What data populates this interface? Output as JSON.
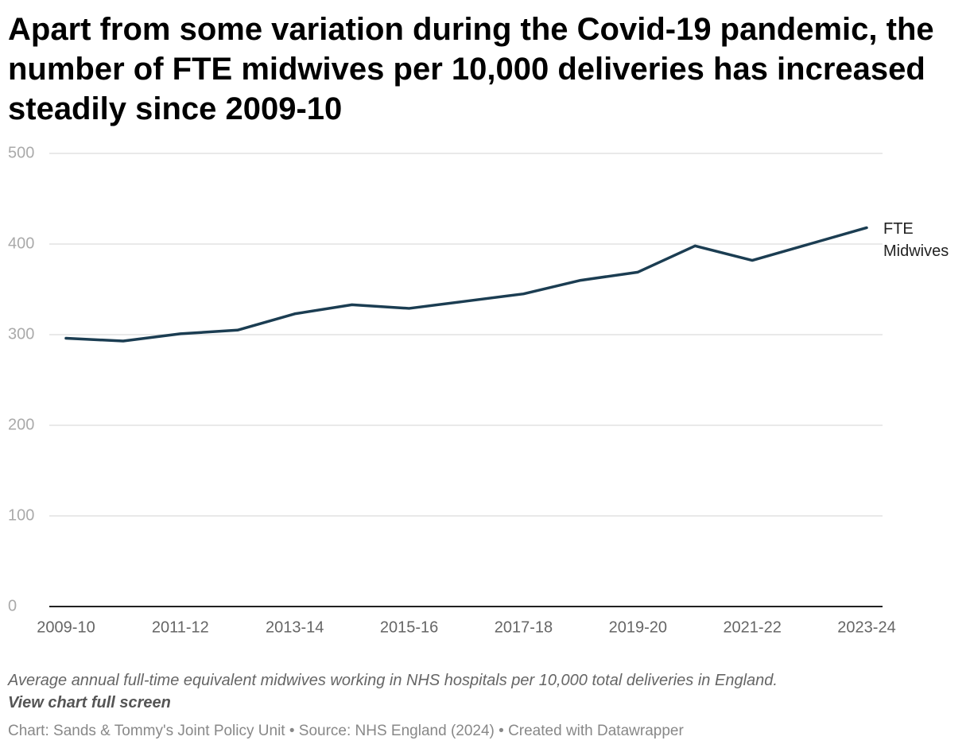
{
  "chart_data": {
    "type": "line",
    "title": "Apart from some variation during the Covid-19 pandemic, the number of FTE midwives per 10,000 deliveries has increased steadily since 2009-10",
    "categories": [
      "2009-10",
      null,
      "2011-12",
      null,
      "2013-14",
      null,
      "2015-16",
      null,
      "2017-18",
      null,
      "2019-20",
      null,
      "2021-22",
      null,
      "2023-24"
    ],
    "series": [
      {
        "name": "FTE Midwives",
        "color": "#1b3d52",
        "values": [
          296,
          293,
          301,
          305,
          323,
          333,
          329,
          337,
          345,
          360,
          369,
          398,
          382,
          400,
          418
        ]
      }
    ],
    "ylim": [
      0,
      500
    ],
    "yticks": [
      0,
      100,
      200,
      300,
      400,
      500
    ],
    "grid": true,
    "description": "Average annual full-time equivalent midwives working in NHS hospitals per 10,000 total deliveries in England.",
    "link": "View chart full screen",
    "footer": "Chart: Sands & Tommy's Joint Policy Unit • Source: NHS England (2024) • Created with Datawrapper"
  }
}
